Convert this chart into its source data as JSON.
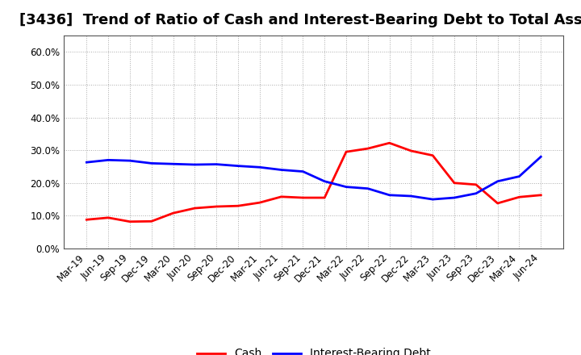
{
  "title": "[3436]  Trend of Ratio of Cash and Interest-Bearing Debt to Total Assets",
  "labels": [
    "Mar-19",
    "Jun-19",
    "Sep-19",
    "Dec-19",
    "Mar-20",
    "Jun-20",
    "Sep-20",
    "Dec-20",
    "Mar-21",
    "Jun-21",
    "Sep-21",
    "Dec-21",
    "Mar-22",
    "Jun-22",
    "Sep-22",
    "Dec-22",
    "Mar-23",
    "Jun-23",
    "Sep-23",
    "Dec-23",
    "Mar-24",
    "Jun-24"
  ],
  "cash": [
    0.088,
    0.094,
    0.082,
    0.083,
    0.108,
    0.123,
    0.128,
    0.13,
    0.14,
    0.158,
    0.155,
    0.155,
    0.295,
    0.305,
    0.322,
    0.298,
    0.284,
    0.2,
    0.195,
    0.138,
    0.157,
    0.163
  ],
  "debt": [
    0.263,
    0.27,
    0.268,
    0.26,
    0.258,
    0.256,
    0.257,
    0.252,
    0.248,
    0.24,
    0.235,
    0.205,
    0.188,
    0.183,
    0.163,
    0.16,
    0.15,
    0.155,
    0.168,
    0.205,
    0.22,
    0.28
  ],
  "cash_color": "#ff0000",
  "debt_color": "#0000ff",
  "background_color": "#ffffff",
  "plot_bg_color": "#ffffff",
  "grid_color": "#aaaaaa",
  "ylim": [
    0.0,
    0.65
  ],
  "yticks": [
    0.0,
    0.1,
    0.2,
    0.3,
    0.4,
    0.5,
    0.6
  ],
  "legend_cash": "Cash",
  "legend_debt": "Interest-Bearing Debt",
  "title_fontsize": 13,
  "tick_fontsize": 8.5,
  "legend_fontsize": 10,
  "line_width": 2.0
}
